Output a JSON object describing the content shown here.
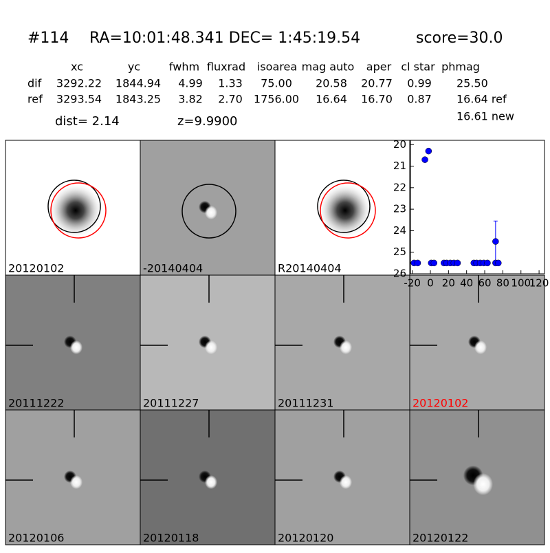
{
  "header": {
    "id": "#114",
    "coords": "RA=10:01:48.341 DEC= 1:45:19.54",
    "score": "score=30.0"
  },
  "table": {
    "columns": [
      "xc",
      "yc",
      "fwhm",
      "fluxrad",
      "isoarea",
      "mag auto",
      "aper",
      "cl star",
      "phmag"
    ],
    "rows": [
      [
        "dif",
        "3292.22",
        "1844.94",
        "4.99",
        "1.33",
        "75.00",
        "20.58",
        "20.77",
        "0.99",
        "25.50"
      ],
      [
        "ref",
        "3293.54",
        "1843.25",
        "3.82",
        "2.70",
        "1756.00",
        "16.64",
        "16.70",
        "0.87",
        "16.64 ref"
      ]
    ],
    "extra": "16.61 new"
  },
  "dist": "dist=  2.14",
  "z": "z=9.9900",
  "panels": [
    "20120102",
    "-20140404",
    "R20140404",
    "20111222",
    "20111227",
    "20111231",
    "20120102",
    "20120106",
    "20120118",
    "20120120",
    "20120122"
  ],
  "chart_data": {
    "type": "scatter",
    "color": "#0000ff",
    "invert_y": true,
    "x": [
      -18,
      -14,
      -6,
      -2,
      1,
      4,
      15,
      18,
      22,
      26,
      30,
      48,
      51,
      55,
      59,
      63,
      72,
      72,
      75
    ],
    "values": [
      25.5,
      25.5,
      20.7,
      20.3,
      25.5,
      25.5,
      25.5,
      25.5,
      25.5,
      25.5,
      25.5,
      25.5,
      25.5,
      25.5,
      25.5,
      25.5,
      24.5,
      25.5,
      25.5
    ],
    "errors": [
      null,
      null,
      null,
      null,
      null,
      null,
      null,
      null,
      null,
      null,
      null,
      null,
      null,
      null,
      null,
      null,
      0.95,
      null,
      null
    ],
    "xlim": [
      -22,
      126
    ],
    "xticks": [
      -20,
      0,
      20,
      40,
      60,
      80,
      100,
      120
    ],
    "ylim": [
      19.8,
      26
    ],
    "yticks": [
      20,
      21,
      22,
      23,
      24,
      25,
      26
    ]
  }
}
